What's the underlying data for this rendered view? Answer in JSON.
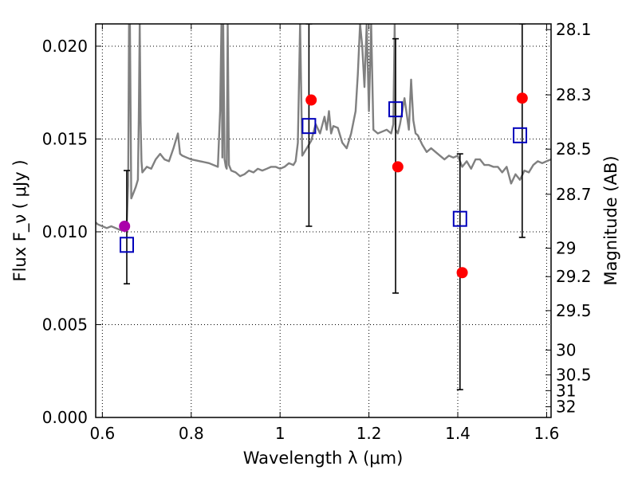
{
  "chart_data": {
    "type": "scatter",
    "title": "",
    "xlabel": "Wavelength  λ (μm)",
    "ylabel": "Flux  F_ν  ( μJy )",
    "y2label": "Magnitude (AB)",
    "xlim": [
      0.585,
      1.61
    ],
    "ylim": [
      0.0,
      0.0212
    ],
    "x_ticks": [
      {
        "value": 0.6,
        "label": "0.6"
      },
      {
        "value": 0.8,
        "label": "0.8"
      },
      {
        "value": 1.0,
        "label": "1"
      },
      {
        "value": 1.2,
        "label": "1.2"
      },
      {
        "value": 1.4,
        "label": "1.4"
      },
      {
        "value": 1.6,
        "label": "1.6"
      }
    ],
    "y_ticks": [
      {
        "value": 0.0,
        "label": "0.000"
      },
      {
        "value": 0.005,
        "label": "0.005"
      },
      {
        "value": 0.01,
        "label": "0.010"
      },
      {
        "value": 0.015,
        "label": "0.015"
      },
      {
        "value": 0.02,
        "label": "0.020"
      }
    ],
    "mag_ticks": [
      "28.1",
      "28.3",
      "28.5",
      "28.7",
      "29",
      "29.2",
      "29.5",
      "30",
      "30.5",
      "31",
      "32"
    ],
    "grid": true,
    "series": [
      {
        "kind": "line",
        "color": "#808080",
        "x": [
          0.585,
          0.59,
          0.6,
          0.61,
          0.62,
          0.63,
          0.64,
          0.645,
          0.65,
          0.655,
          0.658,
          0.66,
          0.662,
          0.665,
          0.67,
          0.675,
          0.68,
          0.682,
          0.684,
          0.686,
          0.688,
          0.69,
          0.7,
          0.71,
          0.72,
          0.73,
          0.74,
          0.75,
          0.76,
          0.77,
          0.775,
          0.78,
          0.79,
          0.8,
          0.82,
          0.84,
          0.86,
          0.865,
          0.868,
          0.87,
          0.872,
          0.875,
          0.878,
          0.88,
          0.882,
          0.885,
          0.89,
          0.9,
          0.91,
          0.92,
          0.93,
          0.94,
          0.95,
          0.96,
          0.97,
          0.98,
          0.99,
          1.0,
          1.01,
          1.02,
          1.03,
          1.035,
          1.04,
          1.045,
          1.05,
          1.06,
          1.07,
          1.08,
          1.09,
          1.1,
          1.105,
          1.11,
          1.115,
          1.12,
          1.13,
          1.14,
          1.15,
          1.16,
          1.17,
          1.175,
          1.18,
          1.185,
          1.19,
          1.195,
          1.2,
          1.205,
          1.21,
          1.22,
          1.23,
          1.24,
          1.25,
          1.255,
          1.258,
          1.26,
          1.265,
          1.27,
          1.28,
          1.29,
          1.295,
          1.3,
          1.305,
          1.31,
          1.32,
          1.33,
          1.34,
          1.35,
          1.36,
          1.37,
          1.38,
          1.39,
          1.4,
          1.41,
          1.42,
          1.43,
          1.44,
          1.45,
          1.46,
          1.47,
          1.48,
          1.49,
          1.5,
          1.51,
          1.52,
          1.53,
          1.54,
          1.55,
          1.56,
          1.57,
          1.58,
          1.59,
          1.6,
          1.61
        ],
        "y": [
          0.0105,
          0.0104,
          0.0103,
          0.0102,
          0.0103,
          0.0102,
          0.0101,
          0.0101,
          0.0102,
          0.0105,
          0.0125,
          0.0212,
          0.0212,
          0.0118,
          0.0121,
          0.0124,
          0.0128,
          0.016,
          0.0212,
          0.016,
          0.0138,
          0.0132,
          0.0135,
          0.0134,
          0.0139,
          0.0142,
          0.0139,
          0.0138,
          0.0145,
          0.0153,
          0.0142,
          0.0141,
          0.014,
          0.0139,
          0.0138,
          0.0137,
          0.0135,
          0.0165,
          0.0212,
          0.014,
          0.0212,
          0.0139,
          0.0135,
          0.0134,
          0.0212,
          0.0136,
          0.0133,
          0.0132,
          0.013,
          0.0131,
          0.0133,
          0.0132,
          0.0134,
          0.0133,
          0.0134,
          0.0135,
          0.0135,
          0.0134,
          0.0135,
          0.0137,
          0.0136,
          0.0138,
          0.0148,
          0.0212,
          0.0141,
          0.0145,
          0.0149,
          0.0158,
          0.0153,
          0.0162,
          0.0155,
          0.0165,
          0.0153,
          0.0157,
          0.0156,
          0.0148,
          0.0145,
          0.0153,
          0.0165,
          0.0185,
          0.0212,
          0.02,
          0.0178,
          0.0212,
          0.0165,
          0.0212,
          0.0155,
          0.0153,
          0.0154,
          0.0155,
          0.0153,
          0.0158,
          0.0212,
          0.0155,
          0.0153,
          0.0158,
          0.0172,
          0.0155,
          0.0182,
          0.016,
          0.0153,
          0.0152,
          0.0147,
          0.0143,
          0.0145,
          0.0143,
          0.0141,
          0.0139,
          0.0141,
          0.014,
          0.0141,
          0.0135,
          0.0138,
          0.0134,
          0.0139,
          0.0139,
          0.0136,
          0.0136,
          0.0135,
          0.0135,
          0.0132,
          0.0135,
          0.0126,
          0.0131,
          0.0128,
          0.0133,
          0.0132,
          0.0136,
          0.0138,
          0.0137,
          0.0138,
          0.0139
        ]
      },
      {
        "kind": "points",
        "marker": "circle",
        "color": "#ff0000",
        "x": [
          1.07,
          1.265,
          1.41,
          1.545
        ],
        "y": [
          0.0171,
          0.0135,
          0.0078,
          0.0172
        ]
      },
      {
        "kind": "points",
        "marker": "circle",
        "color": "#aa00aa",
        "x": [
          0.65
        ],
        "y": [
          0.0103
        ]
      },
      {
        "kind": "points",
        "marker": "open-square",
        "color": "#0000bb",
        "x": [
          0.655,
          1.065,
          1.26,
          1.405,
          1.54
        ],
        "y": [
          0.0093,
          0.0157,
          0.0166,
          0.0107,
          0.0152
        ]
      },
      {
        "kind": "errorbars",
        "color": "#000000",
        "x": [
          0.655,
          1.065,
          1.26,
          1.405,
          1.545
        ],
        "low": [
          0.0072,
          0.0103,
          0.0067,
          0.0015,
          0.0097
        ],
        "high": [
          0.0133,
          0.0212,
          0.0204,
          0.0142,
          0.0212
        ]
      }
    ]
  }
}
